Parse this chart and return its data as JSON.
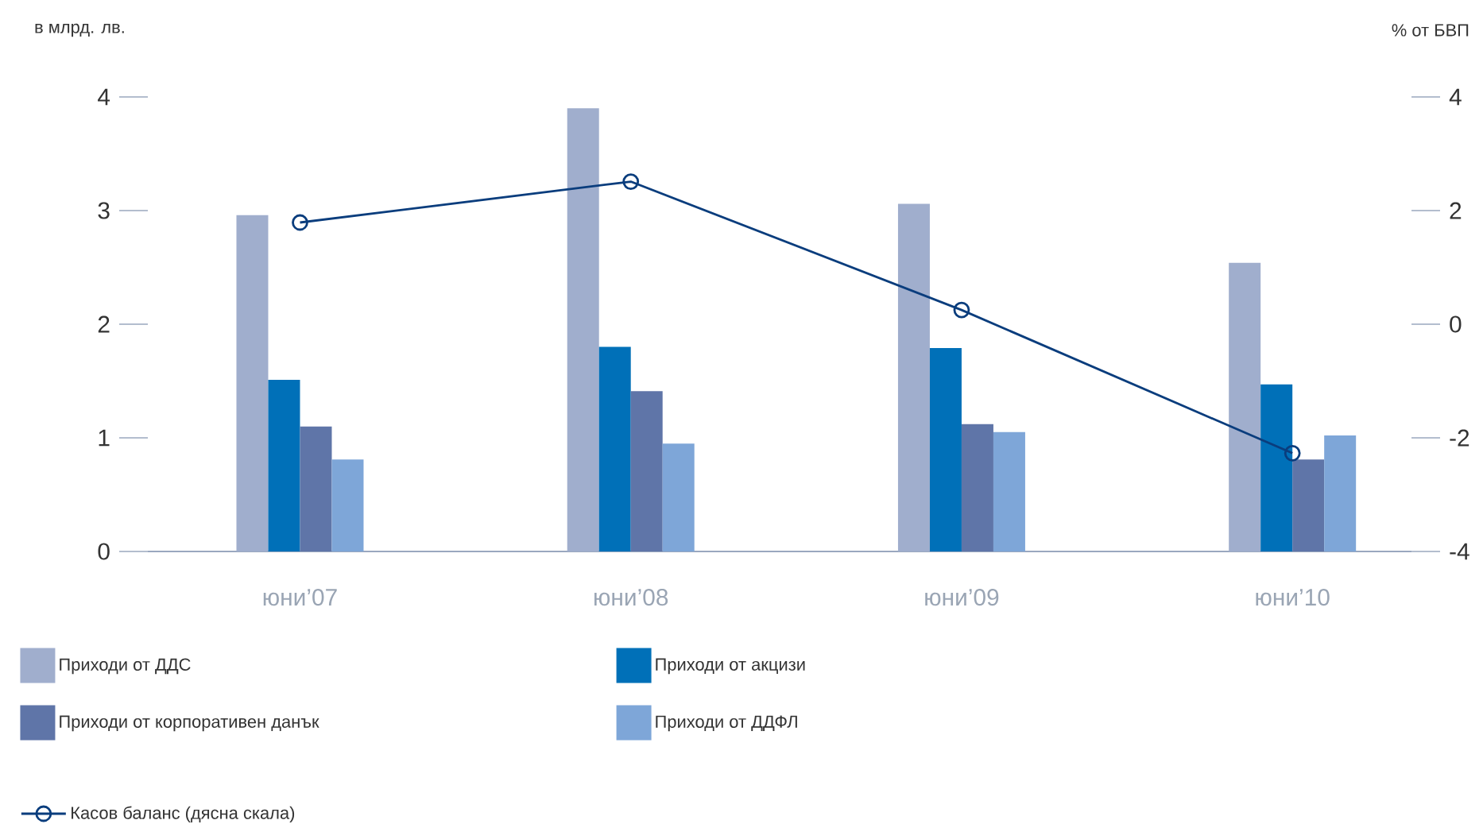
{
  "chart_data": {
    "type": "bar",
    "ylabel": "в млрд. лв.",
    "y2label": "% от БВП",
    "categories": [
      "юни’07",
      "юни’08",
      "юни’09",
      "юни’10"
    ],
    "series": [
      {
        "name": "Приходи от ДДС",
        "color": "#a0aecd",
        "values": [
          2.96,
          3.9,
          3.06,
          2.54
        ]
      },
      {
        "name": "Приходи от акцизи",
        "color": "#0070b8",
        "values": [
          1.51,
          1.8,
          1.79,
          1.47
        ]
      },
      {
        "name": "Приходи от корпоративен данък",
        "color": "#5f75a8",
        "values": [
          1.1,
          1.41,
          1.12,
          0.81
        ]
      },
      {
        "name": "Приходи от ДДФЛ",
        "color": "#7ea6d8",
        "values": [
          0.81,
          0.95,
          1.05,
          1.02
        ]
      },
      {
        "name": "Касов баланс (дясна скала)",
        "type": "line",
        "axis": "y2",
        "color": "#0a3d7d",
        "marker": "circle",
        "line_style": "solid",
        "values": [
          1.79,
          2.51,
          0.25,
          -2.27
        ]
      }
    ],
    "ylim": [
      0,
      4
    ],
    "yticks": [
      0,
      1,
      2,
      3,
      4
    ],
    "y2lim": [
      -4,
      4
    ],
    "y2ticks": [
      -4,
      -2,
      0,
      2,
      4
    ],
    "grid": false,
    "legend": "bottom"
  }
}
